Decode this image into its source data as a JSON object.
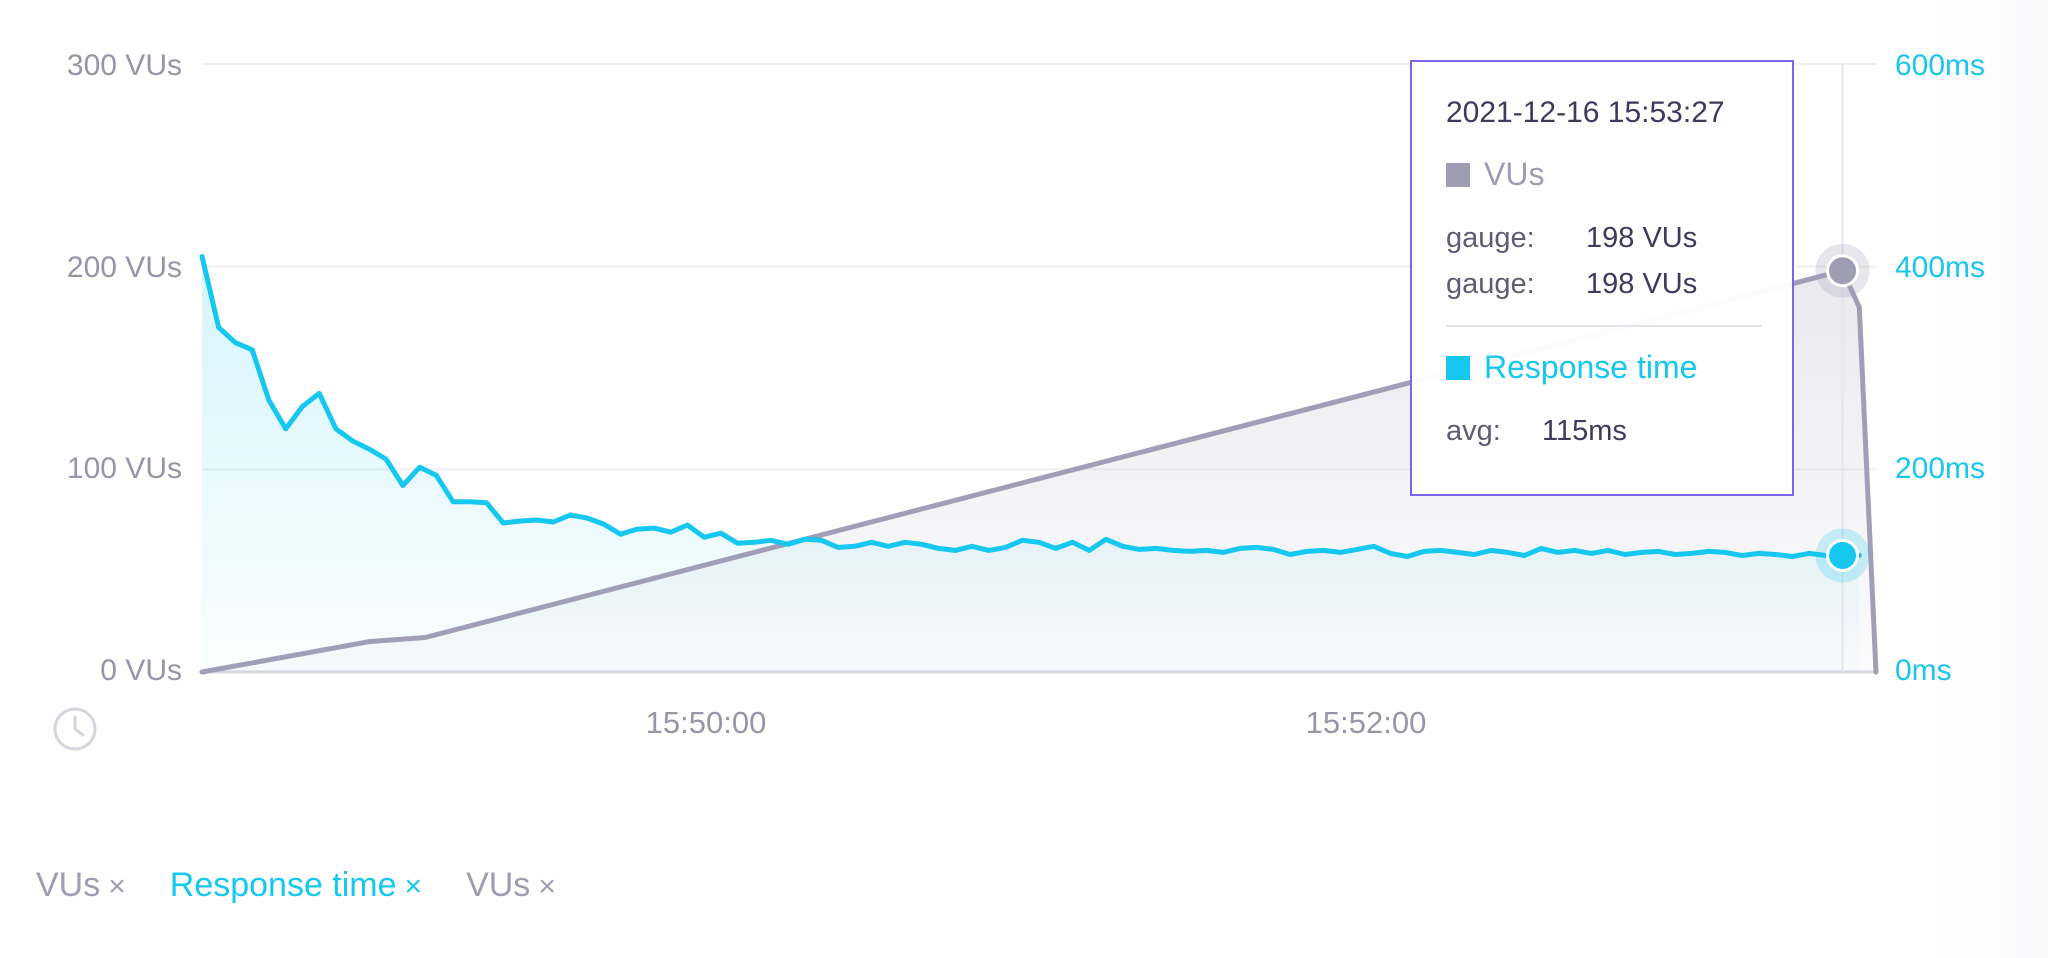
{
  "colors": {
    "vus": "#9f9db4",
    "vus_line": "#a19fb7",
    "response": "#16c7f0",
    "axis_text": "#9795a8",
    "tooltip_border": "#7d64f0"
  },
  "chart_data": {
    "type": "line",
    "x_ticks": [
      "15:50:00",
      "15:52:00"
    ],
    "y_left": {
      "ticks": [
        "300 VUs",
        "200 VUs",
        "100 VUs",
        "0 VUs"
      ],
      "ylim": [
        0,
        300
      ]
    },
    "y_right": {
      "ticks": [
        "600ms",
        "400ms",
        "200ms",
        "0ms"
      ],
      "ylim": [
        0,
        600
      ]
    },
    "xlim_seconds": [
      0,
      300
    ],
    "grid": true,
    "series": [
      {
        "name": "VUs",
        "axis": "left",
        "x": [
          0,
          30,
          40,
          294,
          297,
          300
        ],
        "values": [
          0,
          15,
          17,
          198,
          180,
          0
        ]
      },
      {
        "name": "Response time",
        "axis": "right",
        "x": [
          0,
          3,
          6,
          9,
          12,
          15,
          18,
          21,
          24,
          27,
          30,
          33,
          36,
          39,
          42,
          45,
          48,
          51,
          54,
          57,
          60,
          63,
          66,
          69,
          72,
          75,
          78,
          81,
          84,
          87,
          90,
          93,
          96,
          99,
          102,
          105,
          108,
          111,
          114,
          117,
          120,
          123,
          126,
          129,
          132,
          135,
          138,
          141,
          144,
          147,
          150,
          153,
          156,
          159,
          162,
          165,
          168,
          171,
          174,
          177,
          180,
          183,
          186,
          189,
          192,
          195,
          198,
          201,
          204,
          207,
          210,
          213,
          216,
          219,
          222,
          225,
          228,
          231,
          234,
          237,
          240,
          243,
          246,
          249,
          252,
          255,
          258,
          261,
          264,
          267,
          270,
          273,
          276,
          279,
          282,
          285,
          288,
          291,
          294,
          297
        ],
        "values": [
          410,
          340,
          325,
          318,
          268,
          240,
          262,
          275,
          240,
          228,
          220,
          210,
          184,
          202,
          194,
          168,
          168,
          167,
          147,
          149,
          150,
          148,
          155,
          152,
          146,
          136,
          141,
          142,
          138,
          145,
          133,
          137,
          127,
          128,
          130,
          126,
          131,
          130,
          123,
          124,
          128,
          124,
          128,
          126,
          122,
          120,
          124,
          120,
          123,
          130,
          128,
          122,
          128,
          120,
          131,
          124,
          121,
          122,
          120,
          119,
          120,
          118,
          122,
          123,
          121,
          116,
          119,
          120,
          118,
          121,
          124,
          117,
          114,
          119,
          120,
          118,
          116,
          120,
          118,
          115,
          122,
          118,
          120,
          117,
          120,
          116,
          118,
          119,
          116,
          117,
          119,
          118,
          115,
          117,
          116,
          114,
          117,
          115,
          115,
          115
        ]
      }
    ],
    "hover": {
      "x": 294,
      "vus": 198,
      "response": 115
    }
  },
  "tooltip": {
    "date": "2021-12-16 15:53:27",
    "series1": {
      "name": "VUs",
      "rows": [
        {
          "key": "gauge:",
          "value": "198 VUs"
        },
        {
          "key": "gauge:",
          "value": "198 VUs"
        }
      ]
    },
    "series2": {
      "name": "Response time",
      "rows": [
        {
          "key": "avg:",
          "value": "115ms"
        }
      ]
    }
  },
  "legend": {
    "items": [
      {
        "label": "VUs",
        "close": "×"
      },
      {
        "label": "Response time",
        "close": "×"
      },
      {
        "label": "VUs",
        "close": "×"
      }
    ]
  },
  "icons": {
    "time": "clock-icon"
  }
}
